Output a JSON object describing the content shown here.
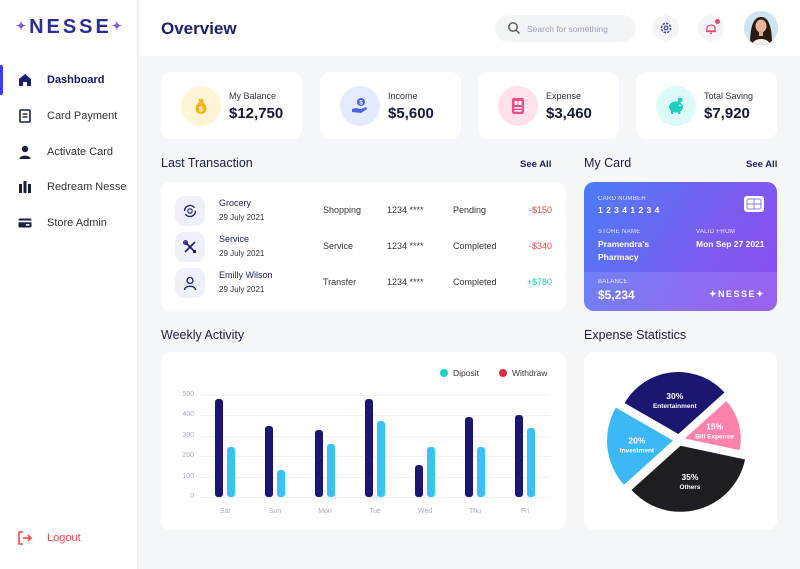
{
  "brand": {
    "name": "NESSE",
    "spark": "✦"
  },
  "sidebar": {
    "items": [
      {
        "label": "Dashboard",
        "icon": "home-icon",
        "active": true
      },
      {
        "label": "Card Payment",
        "icon": "receipt-icon",
        "active": false
      },
      {
        "label": "Activate Card",
        "icon": "user-icon",
        "active": false
      },
      {
        "label": "Redream Nesse",
        "icon": "building-icon",
        "active": false
      },
      {
        "label": "Store Admin",
        "icon": "card-icon",
        "active": false
      }
    ],
    "logout_label": "Logout"
  },
  "header": {
    "title": "Overview",
    "search_placeholder": "Search for something"
  },
  "stats": [
    {
      "label": "My Balance",
      "value": "$12,750",
      "icon": "money-bag-icon",
      "bg": "#FFF4D6",
      "fg": "#F5B517"
    },
    {
      "label": "Income",
      "value": "$5,600",
      "icon": "hand-coin-icon",
      "bg": "#E4EAFF",
      "fg": "#4964E8"
    },
    {
      "label": "Expense",
      "value": "$3,460",
      "icon": "bill-icon",
      "bg": "#FFE0EB",
      "fg": "#F0508A"
    },
    {
      "label": "Total Saving",
      "value": "$7,920",
      "icon": "piggy-bank-icon",
      "bg": "#DCFAF8",
      "fg": "#1FCFC1"
    }
  ],
  "transactions": {
    "title": "Last Transaction",
    "see_all": "See All",
    "rows": [
      {
        "name": "Grocery",
        "date": "29 July 2021",
        "category": "Shopping",
        "card": "1234 ****",
        "status": "Pending",
        "amount": "-$150",
        "kind": "neg",
        "icon": "refresh-icon"
      },
      {
        "name": "Service",
        "date": "29 July 2021",
        "category": "Service",
        "card": "1234 ****",
        "status": "Completed",
        "amount": "-$340",
        "kind": "neg",
        "icon": "tools-icon"
      },
      {
        "name": "Emilly Wilson",
        "date": "29 July 2021",
        "category": "Transfer",
        "card": "1234 ****",
        "status": "Completed",
        "amount": "+$780",
        "kind": "pos",
        "icon": "person-icon"
      }
    ]
  },
  "my_card": {
    "title": "My Card",
    "see_all": "See All",
    "card_number_label": "CARD NUMBER",
    "card_number": "1 2 3 4 1 2 3 4",
    "store_name_label": "STORE NAME",
    "store_name_line1": "Pramendra's",
    "store_name_line2": "Pharmacy",
    "valid_from_label": "VALID FROM",
    "valid_from": "Mon Sep 27 2021",
    "balance_label": "BALANCE",
    "balance": "$5,234",
    "brand": "✦NESSE✦"
  },
  "weekly_activity": {
    "title": "Weekly Activity",
    "legend": [
      {
        "label": "Diposit",
        "color": "#1FCFC1"
      },
      {
        "label": "Withdraw",
        "color": "#E8283C"
      }
    ]
  },
  "expense_statistics": {
    "title": "Expense Statistics"
  },
  "chart_data": [
    {
      "type": "bar",
      "title": "Weekly Activity",
      "categories": [
        "Sat",
        "Sun",
        "Mon",
        "Tue",
        "Wed",
        "Thu",
        "Fri"
      ],
      "series": [
        {
          "name": "Diposit",
          "values": [
            480,
            350,
            330,
            480,
            155,
            390,
            400
          ],
          "color": "#1B1670"
        },
        {
          "name": "Withdraw",
          "values": [
            245,
            130,
            260,
            375,
            245,
            245,
            340
          ],
          "color": "#3BC2F5"
        }
      ],
      "yticks": [
        0,
        100,
        200,
        300,
        400,
        500
      ],
      "ylim": [
        0,
        500
      ],
      "grid": true,
      "legend": "top-right"
    },
    {
      "type": "pie",
      "title": "Expense Statistics",
      "slices": [
        {
          "label": "Entertainment",
          "value": 30,
          "pct_label": "30%",
          "color": "#1B1670"
        },
        {
          "label": "Bill Expense",
          "value": 15,
          "pct_label": "15%",
          "color": "#FF82AC"
        },
        {
          "label": "Others",
          "value": 35,
          "pct_label": "35%",
          "color": "#1E1E22"
        },
        {
          "label": "Investment",
          "value": 20,
          "pct_label": "20%",
          "color": "#3BB8F5"
        }
      ]
    }
  ]
}
